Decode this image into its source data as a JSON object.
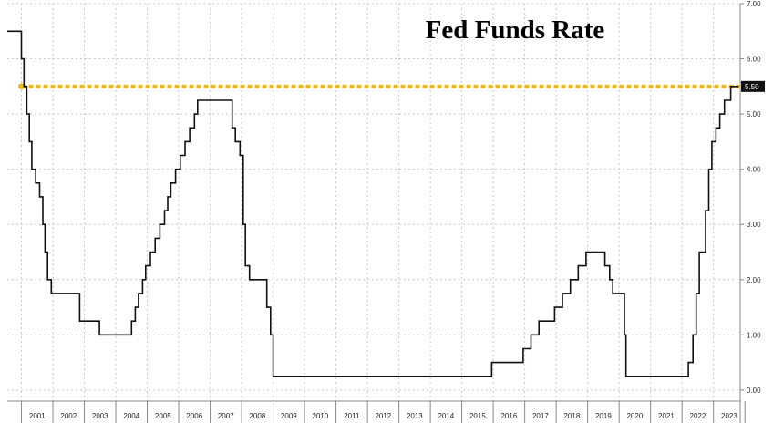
{
  "chart_data": {
    "type": "line",
    "title": "Fed Funds Rate",
    "xlabel": "",
    "ylabel": "",
    "ylim": [
      -0.2,
      7.0
    ],
    "xlim": [
      2000.55,
      2023.85
    ],
    "y_ticks": [
      "0.00",
      "1.00",
      "2.00",
      "3.00",
      "4.00",
      "5.00",
      "6.00",
      "7.00"
    ],
    "x_ticks": [
      "2001",
      "2002",
      "2003",
      "2004",
      "2005",
      "2006",
      "2007",
      "2008",
      "2009",
      "2010",
      "2011",
      "2012",
      "2013",
      "2014",
      "2015",
      "2016",
      "2017",
      "2018",
      "2019",
      "2020",
      "2021",
      "2022",
      "2023"
    ],
    "grid": true,
    "y_axis_position": "right",
    "reference_line": {
      "value": 5.5,
      "label": "5.50",
      "color": "#e8b923",
      "style": "dotted"
    },
    "series": [
      {
        "color": "#111111",
        "step": true,
        "points": [
          [
            2000.55,
            6.5
          ],
          [
            2001.0,
            6.0
          ],
          [
            2001.08,
            5.5
          ],
          [
            2001.17,
            5.0
          ],
          [
            2001.25,
            4.5
          ],
          [
            2001.33,
            4.0
          ],
          [
            2001.45,
            3.75
          ],
          [
            2001.58,
            3.5
          ],
          [
            2001.68,
            3.0
          ],
          [
            2001.75,
            2.5
          ],
          [
            2001.83,
            2.0
          ],
          [
            2001.95,
            1.75
          ],
          [
            2002.85,
            1.25
          ],
          [
            2003.48,
            1.0
          ],
          [
            2004.5,
            1.25
          ],
          [
            2004.62,
            1.5
          ],
          [
            2004.72,
            1.75
          ],
          [
            2004.85,
            2.0
          ],
          [
            2004.95,
            2.25
          ],
          [
            2005.1,
            2.5
          ],
          [
            2005.25,
            2.75
          ],
          [
            2005.4,
            3.0
          ],
          [
            2005.55,
            3.25
          ],
          [
            2005.65,
            3.5
          ],
          [
            2005.75,
            3.75
          ],
          [
            2005.9,
            4.0
          ],
          [
            2006.05,
            4.25
          ],
          [
            2006.2,
            4.5
          ],
          [
            2006.35,
            4.75
          ],
          [
            2006.5,
            5.0
          ],
          [
            2006.6,
            5.25
          ],
          [
            2007.7,
            4.75
          ],
          [
            2007.8,
            4.5
          ],
          [
            2007.95,
            4.25
          ],
          [
            2008.05,
            3.0
          ],
          [
            2008.12,
            2.25
          ],
          [
            2008.25,
            2.0
          ],
          [
            2008.8,
            1.5
          ],
          [
            2008.92,
            1.0
          ],
          [
            2009.0,
            0.25
          ],
          [
            2015.95,
            0.5
          ],
          [
            2016.95,
            0.75
          ],
          [
            2017.2,
            1.0
          ],
          [
            2017.45,
            1.25
          ],
          [
            2017.95,
            1.5
          ],
          [
            2018.2,
            1.75
          ],
          [
            2018.45,
            2.0
          ],
          [
            2018.7,
            2.25
          ],
          [
            2018.95,
            2.5
          ],
          [
            2019.55,
            2.25
          ],
          [
            2019.7,
            2.0
          ],
          [
            2019.8,
            1.75
          ],
          [
            2020.17,
            1.0
          ],
          [
            2020.22,
            0.25
          ],
          [
            2022.2,
            0.5
          ],
          [
            2022.35,
            1.0
          ],
          [
            2022.45,
            1.75
          ],
          [
            2022.55,
            2.5
          ],
          [
            2022.75,
            3.25
          ],
          [
            2022.85,
            4.0
          ],
          [
            2022.95,
            4.5
          ],
          [
            2023.08,
            4.75
          ],
          [
            2023.2,
            5.0
          ],
          [
            2023.35,
            5.25
          ],
          [
            2023.55,
            5.5
          ],
          [
            2023.8,
            5.5
          ]
        ]
      }
    ]
  }
}
